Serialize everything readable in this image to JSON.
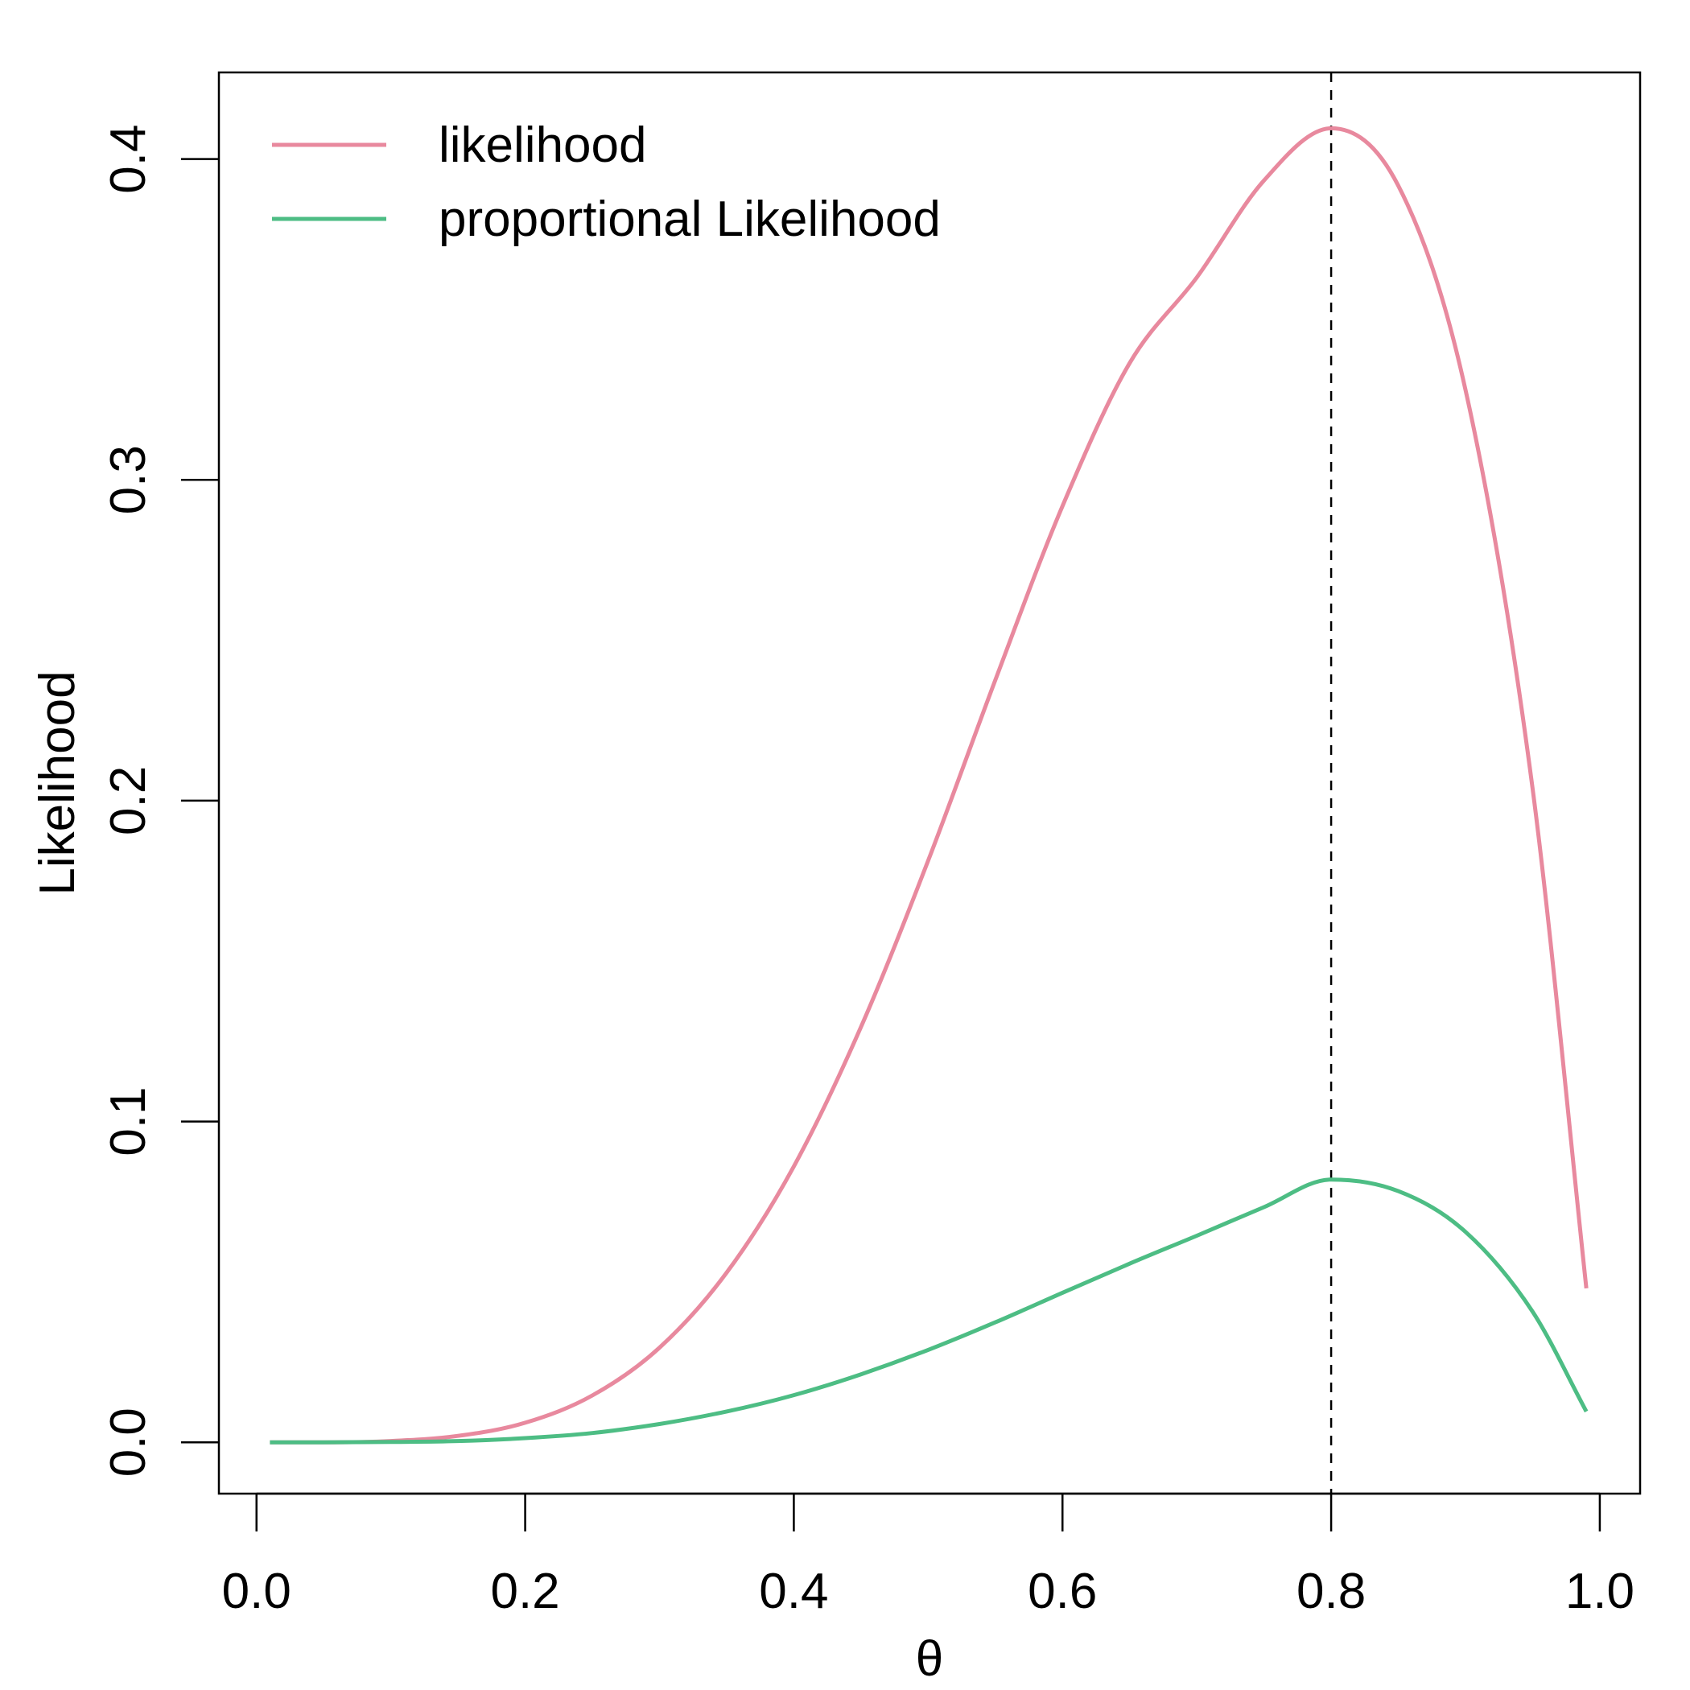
{
  "chart_data": {
    "type": "line",
    "xlabel": "θ",
    "ylabel": "Likelihood",
    "xlim": [
      -0.028,
      1.03
    ],
    "ylim": [
      -0.016,
      0.427
    ],
    "x_ticks": [
      "0.0",
      "0.2",
      "0.4",
      "0.6",
      "0.8",
      "1.0"
    ],
    "y_ticks": [
      "0.0",
      "0.1",
      "0.2",
      "0.3",
      "0.4"
    ],
    "grid": false,
    "legend_position": "top-left",
    "vline": {
      "x": 0.8,
      "style": "dashed",
      "color": "#000000"
    },
    "series": [
      {
        "name": "likelihood",
        "color": "#E8899E",
        "x": [
          0.01,
          0.05,
          0.1,
          0.15,
          0.2,
          0.25,
          0.3,
          0.35,
          0.4,
          0.45,
          0.5,
          0.55,
          0.6,
          0.65,
          0.7,
          0.75,
          0.8,
          0.85,
          0.9,
          0.95,
          0.99
        ],
        "y": [
          0.0,
          0.0,
          0.0004,
          0.002,
          0.0061,
          0.0146,
          0.0295,
          0.0529,
          0.086,
          0.1295,
          0.1813,
          0.2376,
          0.2918,
          0.3364,
          0.3631,
          0.3933,
          0.4096,
          0.3917,
          0.3281,
          0.2036,
          0.048
        ]
      },
      {
        "name": "proportional Likelihood",
        "color": "#4DBD84",
        "x": [
          0.01,
          0.05,
          0.1,
          0.15,
          0.2,
          0.25,
          0.3,
          0.35,
          0.4,
          0.45,
          0.5,
          0.55,
          0.6,
          0.65,
          0.7,
          0.75,
          0.8,
          0.85,
          0.9,
          0.95,
          0.99
        ],
        "y": [
          0.0,
          0.0,
          0.0001,
          0.0004,
          0.0013,
          0.0029,
          0.0057,
          0.0096,
          0.0147,
          0.0212,
          0.0288,
          0.0374,
          0.0466,
          0.0557,
          0.0644,
          0.0733,
          0.0819,
          0.0783,
          0.0656,
          0.0407,
          0.0096
        ]
      }
    ]
  }
}
